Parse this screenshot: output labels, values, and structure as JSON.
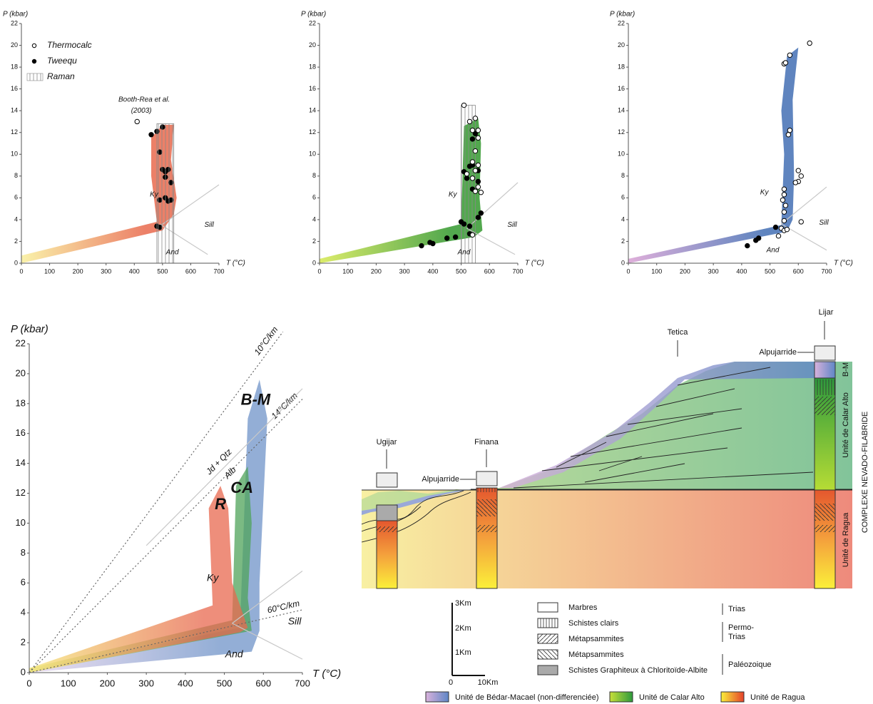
{
  "chart_data": [
    {
      "type": "scatter",
      "x_label": "T (°C)",
      "y_label": "P (kbar)",
      "xlim": [
        0,
        700
      ],
      "ylim": [
        0,
        22
      ],
      "xticks": [
        0,
        100,
        200,
        300,
        400,
        500,
        600,
        700
      ],
      "yticks": [
        0,
        2,
        4,
        6,
        8,
        10,
        12,
        14,
        16,
        18,
        20,
        22
      ],
      "legend": "upper left",
      "fields": [
        {
          "colors": [
            "#f9f0a0",
            "#ea7257"
          ],
          "x": [
            0,
            0,
            480,
            460,
            460,
            500,
            540,
            530,
            550,
            540,
            500
          ],
          "values": [
            0,
            0.7,
            3.8,
            8,
            11.5,
            12.7,
            12.7,
            9.5,
            6,
            4.5,
            3
          ]
        }
      ],
      "lines": [
        {
          "x": [
            490,
            700
          ],
          "values": [
            3.4,
            7.2
          ]
        },
        {
          "x": [
            490,
            660
          ],
          "values": [
            3.6,
            0.8
          ]
        }
      ],
      "series": [
        {
          "name": "Thermocalc",
          "marker": "open",
          "x": [
            410
          ],
          "values": [
            13
          ]
        },
        {
          "name": "Tweequ",
          "marker": "filled",
          "x": [
            460,
            480,
            500,
            490,
            500,
            510,
            520,
            510,
            530,
            490,
            510,
            520,
            530,
            480,
            490
          ],
          "values": [
            11.8,
            12.1,
            12.5,
            10.2,
            8.6,
            8.4,
            8.6,
            7.9,
            7.4,
            5.8,
            6,
            5.7,
            5.8,
            3.4,
            3.3
          ]
        },
        {
          "name": "Raman",
          "marker": "hatch",
          "x": [
            480,
            540
          ],
          "values": [
            0,
            12.8
          ]
        }
      ],
      "annotations": [
        {
          "text": "Booth-Rea et al.",
          "x": 435,
          "y": 15
        },
        {
          "text": "(2003)",
          "x": 425,
          "y": 14
        },
        {
          "text": "Ky",
          "x": 470,
          "y": 6.3,
          "color": "#aaaaaa"
        },
        {
          "text": "Sill",
          "x": 665,
          "y": 3.5,
          "color": "#aaaaaa"
        },
        {
          "text": "And",
          "x": 535,
          "y": 1,
          "color": "#aaaaaa"
        }
      ]
    },
    {
      "type": "scatter",
      "x_label": "T (°C)",
      "y_label": "P (kbar)",
      "xlim": [
        0,
        700
      ],
      "ylim": [
        0,
        22
      ],
      "xticks": [
        0,
        100,
        200,
        300,
        400,
        500,
        600,
        700
      ],
      "yticks": [
        0,
        2,
        4,
        6,
        8,
        10,
        12,
        14,
        16,
        18,
        20,
        22
      ],
      "fields": [
        {
          "colors": [
            "#d8ea5a",
            "#3f9e3a"
          ],
          "x": [
            0,
            0,
            500,
            510,
            560,
            570,
            565,
            575,
            545
          ],
          "values": [
            0,
            0.4,
            3.6,
            12.6,
            13.3,
            11,
            6,
            3,
            2.4
          ]
        }
      ],
      "lines": [
        {
          "x": [
            520,
            700
          ],
          "values": [
            3.2,
            7.4
          ]
        },
        {
          "x": [
            520,
            690
          ],
          "values": [
            3.2,
            0.8
          ]
        }
      ],
      "series": [
        {
          "marker": "hatch",
          "x": [
            500,
            550
          ],
          "values": [
            0,
            14.5
          ]
        },
        {
          "marker": "filled",
          "x": [
            510,
            520,
            530,
            540,
            560,
            560,
            540,
            570,
            560,
            500,
            510,
            530,
            480,
            450,
            390,
            400,
            360,
            540,
            550,
            530
          ],
          "values": [
            8.4,
            7.8,
            8.9,
            9,
            8.5,
            7.5,
            6.8,
            4.6,
            4.2,
            3.8,
            3.6,
            3.4,
            2.4,
            2.3,
            1.9,
            1.8,
            1.6,
            11.4,
            11.9,
            2.7
          ]
        },
        {
          "marker": "open",
          "x": [
            510,
            530,
            550,
            540,
            560,
            560,
            550,
            540,
            560,
            550,
            540,
            560,
            550,
            570,
            540,
            520
          ],
          "values": [
            14.5,
            13,
            13.3,
            12.2,
            12.2,
            11.5,
            10.3,
            9.3,
            9,
            8.5,
            7.8,
            7,
            6.6,
            6.5,
            2.6,
            8.2
          ]
        }
      ],
      "annotations": [
        {
          "text": "Ky",
          "x": 470,
          "y": 6.3,
          "color": "#aaaaaa"
        },
        {
          "text": "Sill",
          "x": 680,
          "y": 3.5,
          "color": "#aaaaaa"
        },
        {
          "text": "And",
          "x": 510,
          "y": 1,
          "color": "#aaaaaa"
        }
      ]
    },
    {
      "type": "scatter",
      "x_label": "T (°C)",
      "y_label": "P (kbar)",
      "xlim": [
        0,
        700
      ],
      "ylim": [
        0,
        22
      ],
      "xticks": [
        0,
        100,
        200,
        300,
        400,
        500,
        600,
        700
      ],
      "yticks": [
        0,
        2,
        4,
        6,
        8,
        10,
        12,
        14,
        16,
        18,
        20,
        22
      ],
      "fields": [
        {
          "colors": [
            "#dba6d6",
            "#4d77b8"
          ],
          "x": [
            0,
            0,
            540,
            550,
            540,
            560,
            600,
            580,
            585,
            580,
            560
          ],
          "values": [
            0,
            0.4,
            3.5,
            10,
            14,
            19,
            19.8,
            15,
            8,
            4,
            2.9
          ]
        }
      ],
      "lines": [
        {
          "x": [
            540,
            700
          ],
          "values": [
            3.6,
            7
          ]
        },
        {
          "x": [
            540,
            700
          ],
          "values": [
            3.6,
            1.2
          ]
        }
      ],
      "series": [
        {
          "marker": "filled",
          "x": [
            520,
            460,
            450,
            420
          ],
          "values": [
            3.3,
            2.3,
            2.1,
            1.6
          ]
        },
        {
          "marker": "open",
          "x": [
            640,
            570,
            550,
            555,
            570,
            565,
            600,
            610,
            600,
            590,
            550,
            550,
            545,
            555,
            550,
            550,
            610,
            540,
            550,
            560,
            530
          ],
          "values": [
            20.2,
            19.1,
            18.3,
            18.4,
            12.2,
            11.8,
            8.5,
            8,
            7.5,
            7.4,
            6.8,
            6.3,
            5.8,
            5.3,
            4.7,
            3.9,
            3.8,
            3.2,
            3,
            3.1,
            2.5
          ]
        }
      ],
      "annotations": [
        {
          "text": "Ky",
          "x": 480,
          "y": 6.5,
          "color": "#aaaaaa"
        },
        {
          "text": "Sill",
          "x": 690,
          "y": 3.7,
          "color": "#aaaaaa"
        },
        {
          "text": "And",
          "x": 510,
          "y": 1.2,
          "color": "#aaaaaa"
        }
      ]
    },
    {
      "type": "area",
      "x_label": "T (°C)",
      "y_label": "P (kbar)",
      "xlim": [
        0,
        700
      ],
      "ylim": [
        0,
        22
      ],
      "xticks": [
        0,
        100,
        200,
        300,
        400,
        500,
        600,
        700
      ],
      "yticks": [
        0,
        2,
        4,
        6,
        8,
        10,
        12,
        14,
        16,
        18,
        20,
        22
      ],
      "fields": [
        {
          "colors": [
            "#e6d3ec",
            "#6f93c8"
          ],
          "x": [
            0,
            0,
            540,
            560,
            590,
            610,
            590,
            590,
            570
          ],
          "values": [
            0,
            0.2,
            3,
            17,
            19.6,
            17,
            6,
            2.8,
            1.4
          ]
        },
        {
          "colors": [
            "#dce98a",
            "#4fa35a"
          ],
          "x": [
            0,
            0,
            520,
            530,
            560,
            570,
            560,
            570
          ],
          "values": [
            0,
            0.3,
            3.5,
            12.5,
            13.8,
            10,
            5,
            2.8
          ]
        },
        {
          "colors": [
            "#f5e676",
            "#e8684f"
          ],
          "x": [
            0,
            0,
            470,
            460,
            490,
            510,
            520,
            560,
            540
          ],
          "values": [
            0,
            0.3,
            4.5,
            11,
            12.5,
            11,
            6,
            3,
            2.7
          ]
        }
      ],
      "lines": [
        {
          "x": [
            0,
            650
          ],
          "values": [
            0,
            22.8
          ],
          "labels": [
            "10°C/km"
          ],
          "style": "dotted"
        },
        {
          "x": [
            0,
            700
          ],
          "values": [
            0,
            18.3
          ],
          "labels": [
            "14°C/km"
          ],
          "style": "dotted"
        },
        {
          "x": [
            0,
            700
          ],
          "values": [
            0,
            4.2
          ],
          "labels": [
            "60°C/km"
          ],
          "style": "dotted"
        },
        {
          "x": [
            300,
            700
          ],
          "values": [
            8.5,
            19
          ],
          "labels": [
            "Jd + Qtz",
            "Alb"
          ]
        },
        {
          "x": [
            520,
            700
          ],
          "values": [
            3.3,
            6.8
          ]
        },
        {
          "x": [
            520,
            700
          ],
          "values": [
            3.3,
            0.9
          ]
        }
      ],
      "series": [],
      "annotations": [
        {
          "text": "Ky",
          "x": 470,
          "y": 6.3,
          "color": "#aaaaaa"
        },
        {
          "text": "Sill",
          "x": 680,
          "y": 3.4,
          "color": "#aaaaaa"
        },
        {
          "text": "And",
          "x": 525,
          "y": 1.2,
          "color": "#aaaaaa"
        },
        {
          "text": "R",
          "x": 490,
          "y": 11.2,
          "bold": true
        },
        {
          "text": "CA",
          "x": 545,
          "y": 12.3,
          "bold": true
        },
        {
          "text": "B-M",
          "x": 580,
          "y": 18.2,
          "bold": true
        }
      ]
    }
  ],
  "cross_section": {
    "localities": [
      "Ugijar",
      "Finana",
      "Tetica",
      "Lijar"
    ],
    "cover_labels": [
      "Alpujarride",
      "Alpujarride"
    ],
    "unit_labels": [
      "B-M",
      "Unité de Calar Alto",
      "Unité de Ragua"
    ],
    "complex": "COMPLEXE NEVADO-FILABRIDE",
    "scale": [
      "3Km",
      "2Km",
      "1Km",
      "0",
      "10Km"
    ],
    "lithology_legend": [
      "Marbres",
      "Schistes clairs",
      "Métapsammites",
      "Métapsammites",
      "Schistes Graphiteux à Chloritoïde-Albite"
    ],
    "ages": [
      "Trias",
      "Permo-",
      "Trias",
      "Paléozoique"
    ],
    "unit_legend": [
      "Unité de Bédar-Macael (non-differenciée)",
      "Unité de Calar Alto",
      "Unité de Ragua"
    ]
  }
}
